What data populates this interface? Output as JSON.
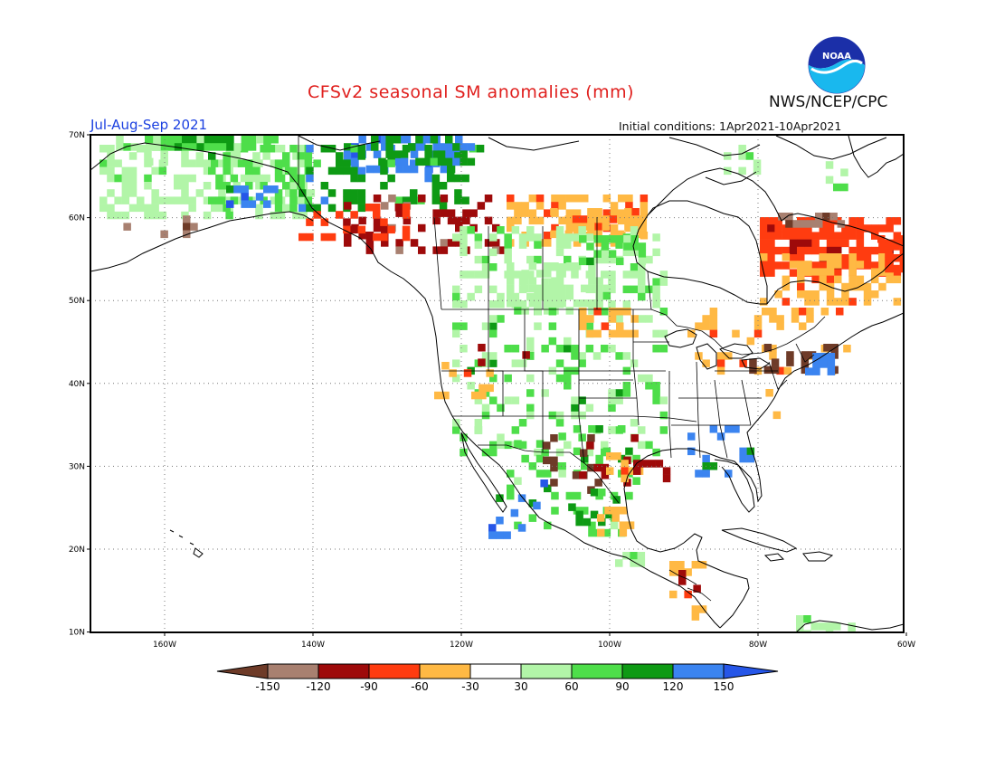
{
  "header": {
    "title": "CFSv2 seasonal SM anomalies (mm)",
    "period": "Jul-Aug-Sep 2021",
    "initial_conditions": "Initial conditions: 1Apr2021-10Apr2021",
    "agency": "NWS/NCEP/CPC",
    "logo_text": "NOAA"
  },
  "map": {
    "lon_ticks": [
      "160W",
      "140W",
      "120W",
      "100W",
      "80W",
      "60W"
    ],
    "lat_ticks": [
      "70N",
      "60N",
      "50N",
      "40N",
      "30N",
      "20N",
      "10N"
    ]
  },
  "legend": {
    "labels": [
      "-150",
      "-120",
      "-90",
      "-60",
      "-30",
      "30",
      "60",
      "90",
      "120",
      "150"
    ],
    "colors": [
      "#6e3b28",
      "#a88070",
      "#9e0a0a",
      "#ff3c10",
      "#ffb944",
      "#ffffff",
      "#b2f5a8",
      "#4ede4a",
      "#0e9a14",
      "#3b84f0",
      "#2656e8"
    ]
  },
  "colors": {
    "title": "#e0201e",
    "period": "#1a3fe0"
  }
}
